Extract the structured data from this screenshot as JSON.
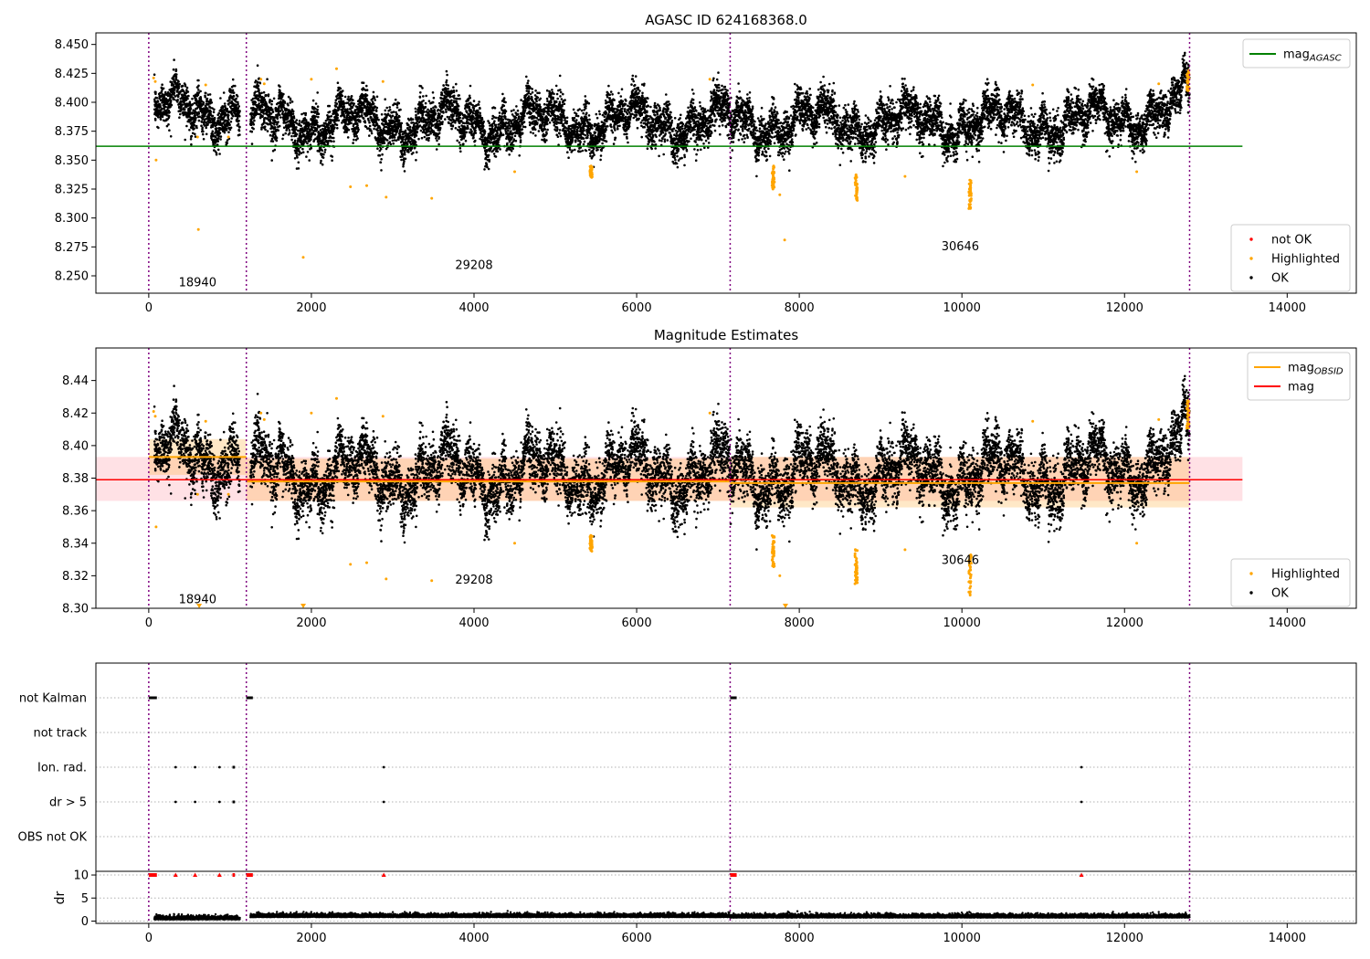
{
  "figure": {
    "title_top": "AGASC ID 624168368.0",
    "title_mid": "Magnitude Estimates"
  },
  "chart_data": [
    {
      "type": "scatter",
      "panel": "top",
      "title": "AGASC ID 624168368.0",
      "xlim": [
        -650,
        14850
      ],
      "ylim": [
        8.235,
        8.46
      ],
      "xticks": [
        0,
        2000,
        4000,
        6000,
        8000,
        10000,
        12000,
        14000
      ],
      "xtick_labels": [
        "0",
        "2000",
        "4000",
        "6000",
        "8000",
        "10000",
        "12000",
        "14000"
      ],
      "yticks": [
        8.25,
        8.275,
        8.3,
        8.325,
        8.35,
        8.375,
        8.4,
        8.425,
        8.45
      ],
      "ytick_labels": [
        "8.250",
        "8.275",
        "8.300",
        "8.325",
        "8.350",
        "8.375",
        "8.400",
        "8.425",
        "8.450"
      ],
      "obsid_boundaries": [
        0,
        1200,
        7150,
        12800
      ],
      "obsid_labels": [
        {
          "text": "18940",
          "x": 600,
          "y": 8.245
        },
        {
          "text": "29208",
          "x": 4000,
          "y": 8.26
        },
        {
          "text": "30646",
          "x": 9980,
          "y": 8.276
        }
      ],
      "hline": {
        "name": "mag_AGASC",
        "y": 8.362,
        "xrange": [
          -650,
          13450
        ],
        "color": "#008000"
      },
      "legend_upper": [
        {
          "label": "mag",
          "sub": "AGASC",
          "color": "#008000",
          "kind": "line"
        }
      ],
      "legend_lower": [
        {
          "label": "not OK",
          "color": "#ff0000",
          "kind": "dot"
        },
        {
          "label": "Highlighted",
          "color": "#ffa500",
          "kind": "dot"
        },
        {
          "label": "OK",
          "color": "#000000",
          "kind": "dot"
        }
      ],
      "outliers": [
        [
          90,
          8.35
        ],
        [
          610,
          8.29
        ],
        [
          700,
          8.415
        ],
        [
          1900,
          8.266
        ],
        [
          2000,
          8.42
        ],
        [
          2310,
          8.429
        ],
        [
          2480,
          8.327
        ],
        [
          2680,
          8.328
        ],
        [
          2880,
          8.418
        ],
        [
          2920,
          8.318
        ],
        [
          3480,
          8.317
        ],
        [
          4500,
          8.34
        ],
        [
          6900,
          8.42
        ],
        [
          7760,
          8.32
        ],
        [
          7820,
          8.281
        ],
        [
          9300,
          8.336
        ],
        [
          10870,
          8.415
        ],
        [
          12150,
          8.34
        ],
        [
          12420,
          8.416
        ],
        [
          80,
          8.418
        ],
        [
          60,
          8.421
        ],
        [
          1380,
          8.42
        ],
        [
          1420,
          8.416
        ],
        [
          600,
          8.37
        ],
        [
          980,
          8.37
        ]
      ],
      "dips": [
        {
          "x": 5440,
          "ytop": 8.345,
          "ybot": 8.335
        },
        {
          "x": 7680,
          "ytop": 8.345,
          "ybot": 8.325
        },
        {
          "x": 8700,
          "ytop": 8.338,
          "ybot": 8.315
        },
        {
          "x": 10100,
          "ytop": 8.333,
          "ybot": 8.308
        },
        {
          "x": 12780,
          "ytop": 8.428,
          "ybot": 8.41
        }
      ],
      "colors": {
        "ok": "#000000",
        "highlighted": "#ffa500",
        "not_ok": "#ff0000",
        "boundary": "#800080"
      }
    },
    {
      "type": "scatter",
      "panel": "middle",
      "title": "Magnitude Estimates",
      "xlim": [
        -650,
        14850
      ],
      "ylim": [
        8.3,
        8.46
      ],
      "xticks": [
        0,
        2000,
        4000,
        6000,
        8000,
        10000,
        12000,
        14000
      ],
      "xtick_labels": [
        "0",
        "2000",
        "4000",
        "6000",
        "8000",
        "10000",
        "12000",
        "14000"
      ],
      "yticks": [
        8.3,
        8.32,
        8.34,
        8.36,
        8.38,
        8.4,
        8.42,
        8.44
      ],
      "ytick_labels": [
        "8.30",
        "8.32",
        "8.34",
        "8.36",
        "8.38",
        "8.40",
        "8.42",
        "8.44"
      ],
      "obsid_boundaries": [
        0,
        1200,
        7150,
        12800
      ],
      "obsid_labels": [
        {
          "text": "18940",
          "x": 600,
          "y": 8.306
        },
        {
          "text": "29208",
          "x": 4000,
          "y": 8.318
        },
        {
          "text": "30646",
          "x": 9980,
          "y": 8.33
        }
      ],
      "mag_line": {
        "name": "mag",
        "y": 8.379,
        "band": [
          8.366,
          8.393
        ],
        "xrange": [
          -650,
          13450
        ],
        "color": "#ff0000"
      },
      "mag_obsid": [
        {
          "x0": 0,
          "x1": 1200,
          "y": 8.393,
          "band": [
            8.382,
            8.404
          ]
        },
        {
          "x0": 1200,
          "x1": 7150,
          "y": 8.378,
          "band": [
            8.366,
            8.392
          ]
        },
        {
          "x0": 7150,
          "x1": 12800,
          "y": 8.377,
          "band": [
            8.362,
            8.393
          ]
        }
      ],
      "legend_upper": [
        {
          "label": "mag",
          "sub": "OBSID",
          "color": "#ffa500",
          "kind": "line"
        },
        {
          "label": "mag",
          "sub": "",
          "color": "#ff0000",
          "kind": "line"
        }
      ],
      "legend_lower": [
        {
          "label": "Highlighted",
          "color": "#ffa500",
          "kind": "dot"
        },
        {
          "label": "OK",
          "color": "#000000",
          "kind": "dot"
        }
      ],
      "below_axis_markers": [
        620,
        1900,
        7830
      ]
    },
    {
      "type": "flags",
      "panel": "flags",
      "xlim": [
        -650,
        14850
      ],
      "categories": [
        "not Kalman",
        "not track",
        "Ion. rad.",
        "dr > 5",
        "OBS not OK"
      ],
      "events": {
        "not Kalman": [
          [
            0,
            100
          ],
          [
            1200,
            1280
          ],
          [
            7150,
            7230
          ]
        ],
        "not track": [],
        "Ion. rad.": [
          [
            330,
            330
          ],
          [
            570,
            570
          ],
          [
            870,
            870
          ],
          [
            1030,
            1060
          ],
          [
            2890,
            2890
          ],
          [
            11470,
            11470
          ]
        ],
        "dr > 5": [
          [
            330,
            330
          ],
          [
            570,
            570
          ],
          [
            870,
            870
          ],
          [
            1030,
            1060
          ],
          [
            2890,
            2890
          ],
          [
            11470,
            11470
          ]
        ],
        "OBS not OK": []
      }
    },
    {
      "type": "scatter",
      "panel": "dr",
      "ylabel": "dr",
      "xlim": [
        -650,
        14850
      ],
      "ylim": [
        -0.5,
        10.8
      ],
      "xticks": [
        0,
        2000,
        4000,
        6000,
        8000,
        10000,
        12000,
        14000
      ],
      "xtick_labels": [
        "0",
        "2000",
        "4000",
        "6000",
        "8000",
        "10000",
        "12000",
        "14000"
      ],
      "yticks": [
        0,
        5,
        10
      ],
      "ytick_labels": [
        "0",
        "5",
        "10"
      ],
      "clipped_markers_at_10": [
        [
          0,
          100
        ],
        [
          1200,
          1280
        ],
        [
          7150,
          7230
        ],
        [
          330,
          330
        ],
        [
          570,
          570
        ],
        [
          870,
          870
        ],
        [
          1030,
          1060
        ],
        [
          2890,
          2890
        ],
        [
          11470,
          11470
        ]
      ],
      "typical_dr": {
        "seg1": 0.5,
        "seg2": 1.0,
        "seg3": 0.9
      }
    }
  ]
}
